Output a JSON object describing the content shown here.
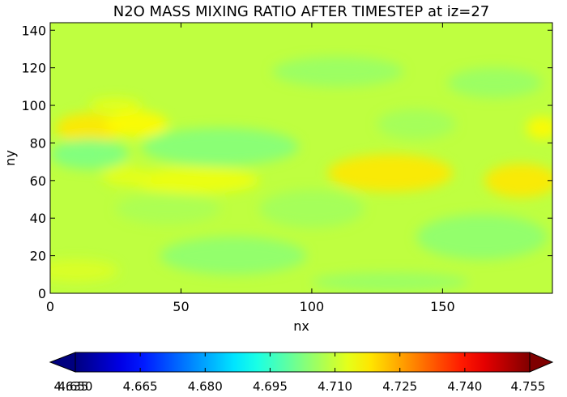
{
  "chart_data": {
    "type": "heatmap",
    "title": "N2O MASS MIXING RATIO AFTER TIMESTEP at iz=27",
    "xlabel": "nx",
    "ylabel": "ny",
    "xlim": [
      0,
      192
    ],
    "ylim": [
      0,
      144
    ],
    "xticks": [
      0,
      50,
      100,
      150
    ],
    "yticks": [
      0,
      20,
      40,
      60,
      80,
      100,
      120,
      140
    ],
    "colorbar": {
      "cmap": "jet",
      "vmin": 4.65,
      "vmax": 4.755,
      "extend": "both",
      "ticks": [
        "4.650",
        "4.665",
        "4.680",
        "4.695",
        "4.710",
        "4.725",
        "4.740",
        "4.755"
      ],
      "overlap_tick": "4.635"
    },
    "field": {
      "background": 4.709,
      "features": [
        {
          "x": 15,
          "y": 88,
          "rx": 13,
          "ry": 8,
          "value": 4.718
        },
        {
          "x": 33,
          "y": 90,
          "rx": 12,
          "ry": 7,
          "value": 4.716
        },
        {
          "x": 25,
          "y": 100,
          "rx": 10,
          "ry": 4,
          "value": 4.713
        },
        {
          "x": 55,
          "y": 60,
          "rx": 25,
          "ry": 7,
          "value": 4.714
        },
        {
          "x": 30,
          "y": 62,
          "rx": 10,
          "ry": 5,
          "value": 4.713
        },
        {
          "x": 24,
          "y": 70,
          "rx": 6,
          "ry": 6,
          "value": 4.712
        },
        {
          "x": 130,
          "y": 64,
          "rx": 24,
          "ry": 10,
          "value": 4.718
        },
        {
          "x": 180,
          "y": 60,
          "rx": 14,
          "ry": 9,
          "value": 4.718
        },
        {
          "x": 188,
          "y": 88,
          "rx": 6,
          "ry": 6,
          "value": 4.716
        },
        {
          "x": 10,
          "y": 12,
          "rx": 16,
          "ry": 6,
          "value": 4.712
        },
        {
          "x": 65,
          "y": 78,
          "rx": 30,
          "ry": 10,
          "value": 4.703
        },
        {
          "x": 15,
          "y": 74,
          "rx": 15,
          "ry": 8,
          "value": 4.702
        },
        {
          "x": 70,
          "y": 20,
          "rx": 28,
          "ry": 10,
          "value": 4.704
        },
        {
          "x": 165,
          "y": 30,
          "rx": 25,
          "ry": 12,
          "value": 4.704
        },
        {
          "x": 110,
          "y": 118,
          "rx": 25,
          "ry": 8,
          "value": 4.705
        },
        {
          "x": 170,
          "y": 112,
          "rx": 18,
          "ry": 8,
          "value": 4.705
        },
        {
          "x": 140,
          "y": 90,
          "rx": 15,
          "ry": 8,
          "value": 4.706
        },
        {
          "x": 100,
          "y": 45,
          "rx": 20,
          "ry": 10,
          "value": 4.706
        },
        {
          "x": 130,
          "y": 6,
          "rx": 30,
          "ry": 5,
          "value": 4.705
        },
        {
          "x": 45,
          "y": 45,
          "rx": 20,
          "ry": 8,
          "value": 4.707
        }
      ]
    }
  }
}
